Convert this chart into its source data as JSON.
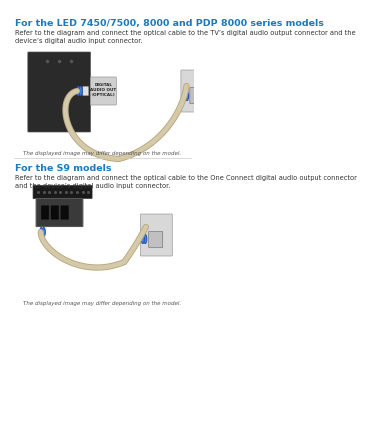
{
  "title1": "For the LED 7450/7500, 8000 and PDP 8000 series models",
  "desc1": "Refer to the diagram and connect the optical cable to the TV’s digital audio output connector and the\ndevice’s digital audio input connector.",
  "caption1": "The displayed image may differ depending on the model.",
  "title2": "For the S9 models",
  "desc2": "Refer to the diagram and connect the optical cable to the One Connect digital audio output connector\nand the device’s digital audio input connector.",
  "caption2": "The displayed image may differ depending on the model.",
  "title_color": "#1a7abf",
  "desc_color": "#333333",
  "caption_color": "#555555",
  "bg_color": "#ffffff",
  "divider_color": "#cccccc",
  "cable_color": "#d4c9a8",
  "cable_border_color": "#b8a880"
}
